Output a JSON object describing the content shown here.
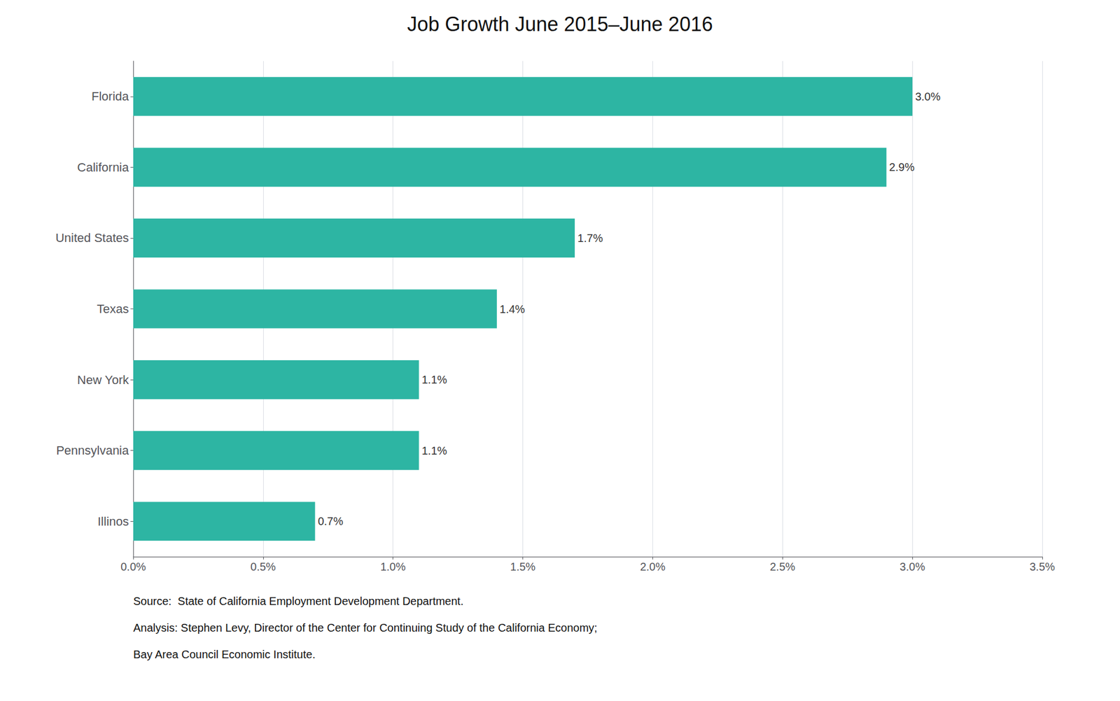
{
  "chart_data": {
    "type": "bar",
    "orientation": "horizontal",
    "title": "Job Growth June 2015–June 2016",
    "categories": [
      "Illinos",
      "Pennsylvania",
      "New York",
      "Texas",
      "United States",
      "California",
      "Florida"
    ],
    "values": [
      0.007,
      0.011,
      0.011,
      0.014,
      0.017,
      0.029,
      0.03
    ],
    "value_labels": [
      "0.7%",
      "1.1%",
      "1.1%",
      "1.4%",
      "1.7%",
      "2.9%",
      "3.0%"
    ],
    "data_labels": true,
    "color": "#2DB5A3",
    "xlim": [
      0,
      0.035
    ],
    "xticks": [
      {
        "value": 0,
        "label": "0.0%"
      },
      {
        "value": 0.005,
        "label": "0.5%"
      },
      {
        "value": 0.01,
        "label": "1.0%"
      },
      {
        "value": 0.015,
        "label": "1.5%"
      },
      {
        "value": 0.02,
        "label": "2.0%"
      },
      {
        "value": 0.025,
        "label": "2.5%"
      },
      {
        "value": 0.03,
        "label": "3.0%"
      },
      {
        "value": 0.035,
        "label": "3.5%"
      }
    ],
    "grid": true,
    "annotations": [
      "Source:  State of California Employment Development Department.",
      "Analysis: Stephen Levy, Director of the Center for Continuing Study of the California Economy;",
      "Bay Area Council Economic Institute."
    ]
  }
}
